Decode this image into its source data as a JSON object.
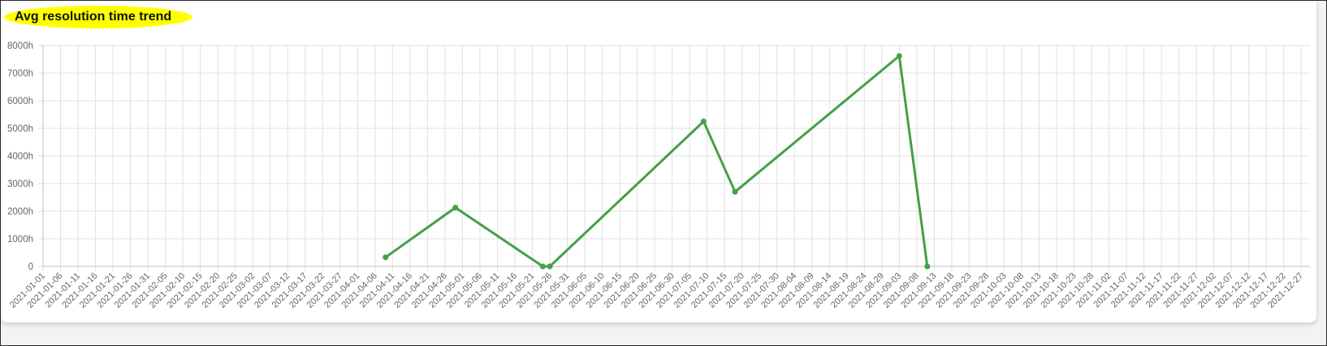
{
  "header": {
    "title": "Avg resolution time trend",
    "title_highlight_color": "#ffff00"
  },
  "colors": {
    "series": "#43a047",
    "grid": "#e0e0e0",
    "text": "#666666"
  },
  "chart_data": {
    "type": "line",
    "title": "Avg resolution time trend",
    "xlabel": "",
    "ylabel": "",
    "ylim": [
      0,
      8000
    ],
    "y_ticks": [
      "0",
      "1000h",
      "2000h",
      "3000h",
      "4000h",
      "5000h",
      "6000h",
      "7000h",
      "8000h"
    ],
    "x_ticks": [
      "2021-01-01",
      "2021-01-06",
      "2021-01-11",
      "2021-01-16",
      "2021-01-21",
      "2021-01-26",
      "2021-01-31",
      "2021-02-05",
      "2021-02-10",
      "2021-02-15",
      "2021-02-20",
      "2021-02-25",
      "2021-03-02",
      "2021-03-07",
      "2021-03-12",
      "2021-03-17",
      "2021-03-22",
      "2021-03-27",
      "2021-04-01",
      "2021-04-06",
      "2021-04-11",
      "2021-04-16",
      "2021-04-21",
      "2021-04-26",
      "2021-05-01",
      "2021-05-06",
      "2021-05-11",
      "2021-05-16",
      "2021-05-21",
      "2021-05-26",
      "2021-05-31",
      "2021-06-05",
      "2021-06-10",
      "2021-06-15",
      "2021-06-20",
      "2021-06-25",
      "2021-06-30",
      "2021-07-05",
      "2021-07-10",
      "2021-07-15",
      "2021-07-20",
      "2021-07-25",
      "2021-07-30",
      "2021-08-04",
      "2021-08-09",
      "2021-08-14",
      "2021-08-19",
      "2021-08-24",
      "2021-08-29",
      "2021-09-03",
      "2021-09-08",
      "2021-09-13",
      "2021-09-18",
      "2021-09-23",
      "2021-09-28",
      "2021-10-03",
      "2021-10-08",
      "2021-10-13",
      "2021-10-18",
      "2021-10-23",
      "2021-10-28",
      "2021-11-02",
      "2021-11-07",
      "2021-11-12",
      "2021-11-17",
      "2021-11-22",
      "2021-11-27",
      "2021-12-02",
      "2021-12-07",
      "2021-12-12",
      "2021-12-17",
      "2021-12-22",
      "2021-12-27"
    ],
    "series": [
      {
        "points": [
          {
            "x": "2021-04-09",
            "y": 330
          },
          {
            "x": "2021-04-29",
            "y": 2130
          },
          {
            "x": "2021-05-24",
            "y": 0
          },
          {
            "x": "2021-05-26",
            "y": 0
          },
          {
            "x": "2021-07-09",
            "y": 5250
          },
          {
            "x": "2021-07-18",
            "y": 2700
          },
          {
            "x": "2021-09-03",
            "y": 7620
          },
          {
            "x": "2021-09-11",
            "y": 0
          }
        ]
      }
    ],
    "grid": true,
    "legend": "none"
  }
}
